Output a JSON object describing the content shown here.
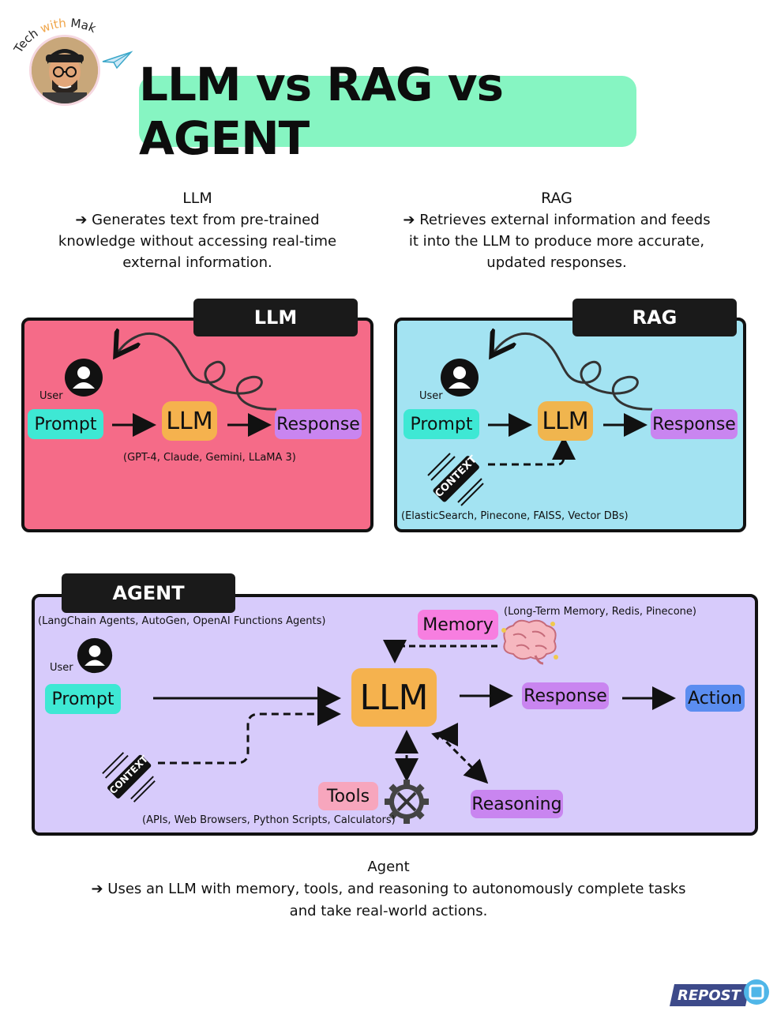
{
  "brand": {
    "name_part1": "Tech ",
    "name_part2": "with",
    "name_part3": " Mak"
  },
  "title": "LLM vs RAG vs AGENT",
  "llm_desc": {
    "heading": "LLM",
    "line1": "➔ Generates text from pre-trained",
    "line2": "knowledge without accessing real-time",
    "line3": "external information."
  },
  "rag_desc": {
    "heading": "RAG",
    "line1": "➔ Retrieves external information and feeds",
    "line2": "it into the LLM to produce more accurate,",
    "line3": "updated responses."
  },
  "llm_panel": {
    "tag": "LLM",
    "user": "User",
    "prompt": "Prompt",
    "llm": "LLM",
    "response": "Response",
    "models": "(GPT-4, Claude, Gemini, LLaMA 3)"
  },
  "rag_panel": {
    "tag": "RAG",
    "user": "User",
    "prompt": "Prompt",
    "llm": "LLM",
    "response": "Response",
    "context": "CONTEXT",
    "sources": "(ElasticSearch, Pinecone, FAISS, Vector DBs)"
  },
  "agent_panel": {
    "tag": "AGENT",
    "frameworks": "(LangChain Agents, AutoGen, OpenAI Functions Agents)",
    "user": "User",
    "prompt": "Prompt",
    "llm": "LLM",
    "memory": "Memory",
    "memory_sources": "(Long-Term Memory, Redis, Pinecone)",
    "response": "Response",
    "action": "Action",
    "context": "CONTEXT",
    "tools": "Tools",
    "tool_examples": "(APIs, Web Browsers, Python Scripts, Calculators)",
    "reasoning": "Reasoning"
  },
  "agent_desc": {
    "heading": "Agent",
    "line1": "➔ Uses an LLM with memory, tools, and reasoning to autonomously complete tasks",
    "line2": "and take real-world actions."
  },
  "repost": "REPOST",
  "colors": {
    "title_bg": "#86f5c2",
    "llm_panel_bg": "#f56b88",
    "rag_panel_bg": "#a3e3f2",
    "agent_panel_bg": "#d7cbfb",
    "prompt_bg": "#3ee8d4",
    "llm_bg": "#f5b24e",
    "response_bg": "#c985f0",
    "memory_bg": "#f77ee0",
    "tools_bg": "#f7a6bd",
    "action_bg": "#5b8df0"
  }
}
